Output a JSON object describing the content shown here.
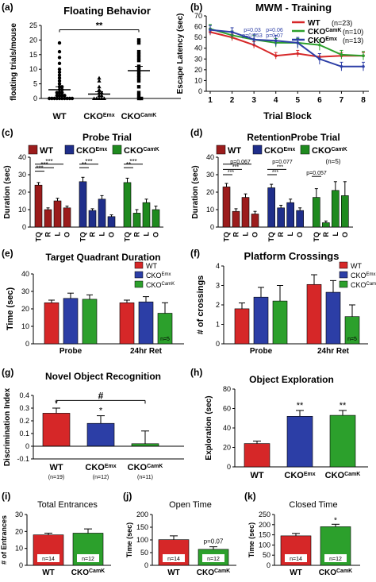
{
  "panel_labels": [
    "(a)",
    "(b)",
    "(c)",
    "(d)",
    "(e)",
    "(f)",
    "(g)",
    "(h)",
    "(i)",
    "(j)",
    "(k)"
  ],
  "colors": {
    "wt": "#d62728",
    "emx": "#2c3ea6",
    "camk": "#2ca02c",
    "wt_dark": "#9b1c1c",
    "emx_dark": "#1f2e8a",
    "camk_dark": "#1f8a1f"
  },
  "chart_data": [
    {
      "id": "a",
      "type": "scatter",
      "title": "Floating Behavior",
      "ylabel": "floating trials/mouse",
      "ylim": [
        0,
        25
      ],
      "yticks": [
        0,
        5,
        10,
        15,
        20,
        25
      ],
      "categories": [
        "WT",
        "CKO",
        "CKO"
      ],
      "category_sup": [
        "",
        "Emx",
        "CamK"
      ],
      "points": [
        [
          0,
          0,
          0,
          0,
          0,
          0,
          0,
          0,
          0,
          0,
          1,
          1,
          1,
          1,
          2,
          2,
          2,
          3,
          3,
          4,
          4,
          5,
          6,
          7,
          8,
          9,
          10,
          12,
          14,
          16,
          19
        ],
        [
          0,
          0,
          0,
          0,
          0,
          1,
          1,
          2,
          2,
          3,
          4,
          6,
          7
        ],
        [
          0,
          0,
          1,
          2,
          4,
          6,
          7,
          8,
          9,
          10,
          11,
          13,
          14,
          15,
          16,
          19,
          20
        ]
      ],
      "means": [
        3,
        1.5,
        9.5
      ],
      "sem": [
        1,
        0.8,
        1.5
      ],
      "sig": "**"
    },
    {
      "id": "b",
      "type": "line",
      "title": "MWM - Training",
      "xlabel": "Trial Block",
      "ylabel": "Escape Latency (sec)",
      "ylim": [
        0,
        70
      ],
      "yticks": [
        0,
        10,
        20,
        30,
        40,
        50,
        60,
        70
      ],
      "x": [
        1,
        2,
        3,
        4,
        5,
        6,
        7,
        8
      ],
      "series": [
        {
          "name": "WT",
          "n": "(n=23)",
          "values": [
            55,
            50,
            43,
            33,
            35,
            32,
            33,
            33
          ],
          "err": [
            3,
            3,
            3,
            3,
            3,
            3,
            3,
            3
          ]
        },
        {
          "name": "CKO",
          "sup": "CamK",
          "n": "(n=10)",
          "values": [
            58,
            52,
            48,
            45,
            45,
            43,
            34,
            33
          ],
          "err": [
            4,
            4,
            4,
            4,
            4,
            5,
            4,
            4
          ]
        },
        {
          "name": "CKO",
          "sup": "Emx",
          "n": "(n=13)",
          "values": [
            57,
            55,
            48,
            47,
            45,
            30,
            23,
            23
          ],
          "err": [
            4,
            4,
            5,
            5,
            5,
            5,
            4,
            4
          ]
        }
      ],
      "pvalues": [
        "p=0.03",
        "p=0.053",
        "p=0.06",
        "p=0.07"
      ]
    },
    {
      "id": "c",
      "type": "bar",
      "title": "Probe Trial",
      "ylabel": "Duration (sec)",
      "ylim": [
        0,
        40
      ],
      "yticks": [
        0,
        10,
        20,
        30,
        40
      ],
      "categories": [
        "TQ",
        "R",
        "L",
        "O"
      ],
      "legend": [
        {
          "name": "WT",
          "sup": ""
        },
        {
          "name": "CKO",
          "sup": "Emx"
        },
        {
          "name": "CKO",
          "sup": "CamK"
        }
      ],
      "groups": [
        {
          "values": [
            24,
            10,
            15,
            11
          ],
          "err": [
            1.5,
            1,
            1.5,
            1
          ]
        },
        {
          "values": [
            26,
            9.5,
            16,
            6
          ],
          "err": [
            2.5,
            1,
            2,
            1
          ]
        },
        {
          "values": [
            25.5,
            8,
            14,
            10
          ],
          "err": [
            2.5,
            2,
            2,
            2
          ]
        }
      ],
      "sig": [
        "***",
        "***",
        "***",
        "***",
        "**",
        "***",
        "**",
        "***"
      ]
    },
    {
      "id": "d",
      "type": "bar",
      "title": "RetentionProbe Trial",
      "ylabel": "Duration (sec)",
      "ylim": [
        0,
        40
      ],
      "yticks": [
        0,
        10,
        20,
        30,
        40
      ],
      "categories": [
        "TQ",
        "R",
        "L",
        "O"
      ],
      "legend": [
        {
          "name": "WT",
          "sup": ""
        },
        {
          "name": "CKO",
          "sup": "Emx"
        },
        {
          "name": "CKO",
          "sup": "CamK"
        }
      ],
      "note": "(n=5)",
      "groups": [
        {
          "values": [
            23,
            9,
            17,
            7.5
          ],
          "err": [
            2,
            1.5,
            2,
            1.5
          ]
        },
        {
          "values": [
            22.5,
            11,
            14,
            9.5
          ],
          "err": [
            2,
            1.5,
            2,
            1.5
          ]
        },
        {
          "values": [
            17,
            2.5,
            21,
            18
          ],
          "err": [
            5,
            1,
            5,
            8
          ]
        }
      ],
      "sig": [
        "***",
        "***",
        "p=0.067",
        "***",
        "***",
        "p=0.077",
        "p=0.057"
      ]
    },
    {
      "id": "e",
      "type": "bar",
      "title": "Target Quadrant Duration",
      "ylabel": "Time (sec)",
      "ylim": [
        0,
        40
      ],
      "yticks": [
        0,
        10,
        20,
        30,
        40
      ],
      "categories": [
        "Probe",
        "24hr Ret"
      ],
      "legend": [
        {
          "name": "WT",
          "sup": ""
        },
        {
          "name": "CKO",
          "sup": "Emx"
        },
        {
          "name": "CKO",
          "sup": "CamK"
        }
      ],
      "series": [
        {
          "values": [
            23.5,
            23.5
          ],
          "err": [
            1.5,
            1.5
          ]
        },
        {
          "values": [
            26,
            24
          ],
          "err": [
            3,
            3
          ]
        },
        {
          "values": [
            25.5,
            17.5
          ],
          "err": [
            2.5,
            6
          ]
        }
      ],
      "note": "n=5"
    },
    {
      "id": "f",
      "type": "bar",
      "title": "Platform Crossings",
      "ylabel": "# of crossings",
      "ylim": [
        0,
        4
      ],
      "yticks": [
        0,
        1,
        2,
        3,
        4
      ],
      "categories": [
        "Probe",
        "24hr Ret"
      ],
      "legend": [
        {
          "name": "WT",
          "sup": ""
        },
        {
          "name": "CKO",
          "sup": "Emx"
        },
        {
          "name": "CKO",
          "sup": "CamK"
        }
      ],
      "series": [
        {
          "values": [
            1.8,
            3.05
          ],
          "err": [
            0.3,
            0.5
          ]
        },
        {
          "values": [
            2.4,
            2.65
          ],
          "err": [
            0.5,
            0.6
          ]
        },
        {
          "values": [
            2.2,
            1.4
          ],
          "err": [
            0.8,
            0.6
          ]
        }
      ],
      "note": "n=5"
    },
    {
      "id": "g",
      "type": "bar",
      "title": "Novel Object Recognition",
      "ylabel": "Discrimination Index",
      "ylim": [
        -0.1,
        0.4
      ],
      "yticks": [
        -0.1,
        0.0,
        0.1,
        0.2,
        0.3,
        0.4
      ],
      "categories": [
        "WT",
        "CKO",
        "CKO"
      ],
      "category_sup": [
        "",
        "Emx",
        "CamK"
      ],
      "n": [
        "(n=19)",
        "(n=12)",
        "(n=11)"
      ],
      "values": [
        0.26,
        0.18,
        0.02
      ],
      "err": [
        0.04,
        0.06,
        0.1
      ],
      "stars": [
        "*",
        "*",
        ""
      ],
      "sig": "#"
    },
    {
      "id": "h",
      "type": "bar",
      "title": "Object Exploration",
      "ylabel": "Exploration (sec)",
      "ylim": [
        0,
        80
      ],
      "yticks": [
        0,
        20,
        40,
        60,
        80
      ],
      "categories": [
        "WT",
        "CKO",
        "CKO"
      ],
      "category_sup": [
        "",
        "Emx",
        "CamK"
      ],
      "values": [
        24,
        52,
        53
      ],
      "err": [
        2.5,
        6,
        5
      ],
      "stars": [
        "",
        "**",
        "**"
      ]
    },
    {
      "id": "i",
      "type": "bar",
      "title": "Total Entrances",
      "ylabel": "# of Entrances",
      "ylim": [
        0,
        30
      ],
      "yticks": [
        0,
        10,
        20,
        30
      ],
      "categories": [
        "WT",
        "CKO"
      ],
      "category_sup": [
        "",
        "CamK"
      ],
      "values": [
        18,
        19
      ],
      "err": [
        1,
        2.5
      ],
      "n": [
        "n=14",
        "n=12"
      ]
    },
    {
      "id": "j",
      "type": "bar",
      "title": "Open Time",
      "ylabel": "Time (sec)",
      "ylim": [
        0,
        200
      ],
      "yticks": [
        0,
        50,
        100,
        150,
        200
      ],
      "categories": [
        "WT",
        "CKO"
      ],
      "category_sup": [
        "",
        "CamK"
      ],
      "values": [
        101,
        63
      ],
      "err": [
        15,
        10
      ],
      "n": [
        "n=14",
        "n=12"
      ],
      "pnote": "p=0.07"
    },
    {
      "id": "k",
      "type": "bar",
      "title": "Closed Time",
      "ylabel": "Time (sec)",
      "ylim": [
        0,
        250
      ],
      "yticks": [
        0,
        50,
        100,
        150,
        200,
        250
      ],
      "categories": [
        "WT",
        "CKO"
      ],
      "category_sup": [
        "",
        "CamK"
      ],
      "values": [
        145,
        190
      ],
      "err": [
        12,
        12
      ],
      "n": [
        "n=14",
        "n=12"
      ],
      "stars": [
        "",
        "*"
      ]
    }
  ]
}
